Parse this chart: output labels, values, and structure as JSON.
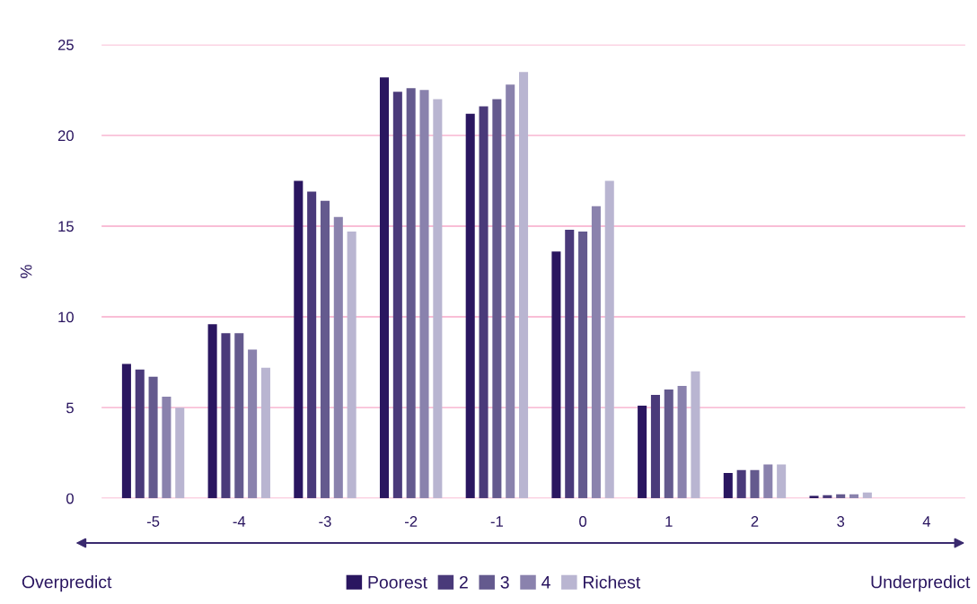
{
  "chart_data": {
    "type": "bar",
    "ylabel": "%",
    "categories": [
      "-5",
      "-4",
      "-3",
      "-2",
      "-1",
      "0",
      "1",
      "2",
      "3",
      "4"
    ],
    "series": [
      {
        "name": "Poorest",
        "color": "#2a1660",
        "values": [
          7.4,
          9.6,
          17.5,
          23.2,
          21.2,
          13.6,
          5.1,
          1.4,
          0.13,
          0
        ]
      },
      {
        "name": "2",
        "color": "#4a3a7a",
        "values": [
          7.1,
          9.1,
          16.9,
          22.4,
          21.6,
          14.8,
          5.7,
          1.56,
          0.17,
          0
        ]
      },
      {
        "name": "3",
        "color": "#645a8e",
        "values": [
          6.7,
          9.1,
          16.4,
          22.6,
          22.0,
          14.7,
          6.0,
          1.56,
          0.22,
          0
        ]
      },
      {
        "name": "4",
        "color": "#8a82ad",
        "values": [
          5.6,
          8.2,
          15.5,
          22.5,
          22.8,
          16.1,
          6.2,
          1.86,
          0.22,
          0
        ]
      },
      {
        "name": "Richest",
        "color": "#b9b5d1",
        "values": [
          5.0,
          7.2,
          14.7,
          22.0,
          23.5,
          17.5,
          7.0,
          1.86,
          0.32,
          0
        ]
      }
    ],
    "ylim": [
      0,
      25
    ],
    "yticks": [
      0,
      5,
      10,
      15,
      20,
      25
    ],
    "grid": "y",
    "legend": "bottom",
    "annotations": [
      "Overpredict",
      "Underpredict"
    ]
  }
}
